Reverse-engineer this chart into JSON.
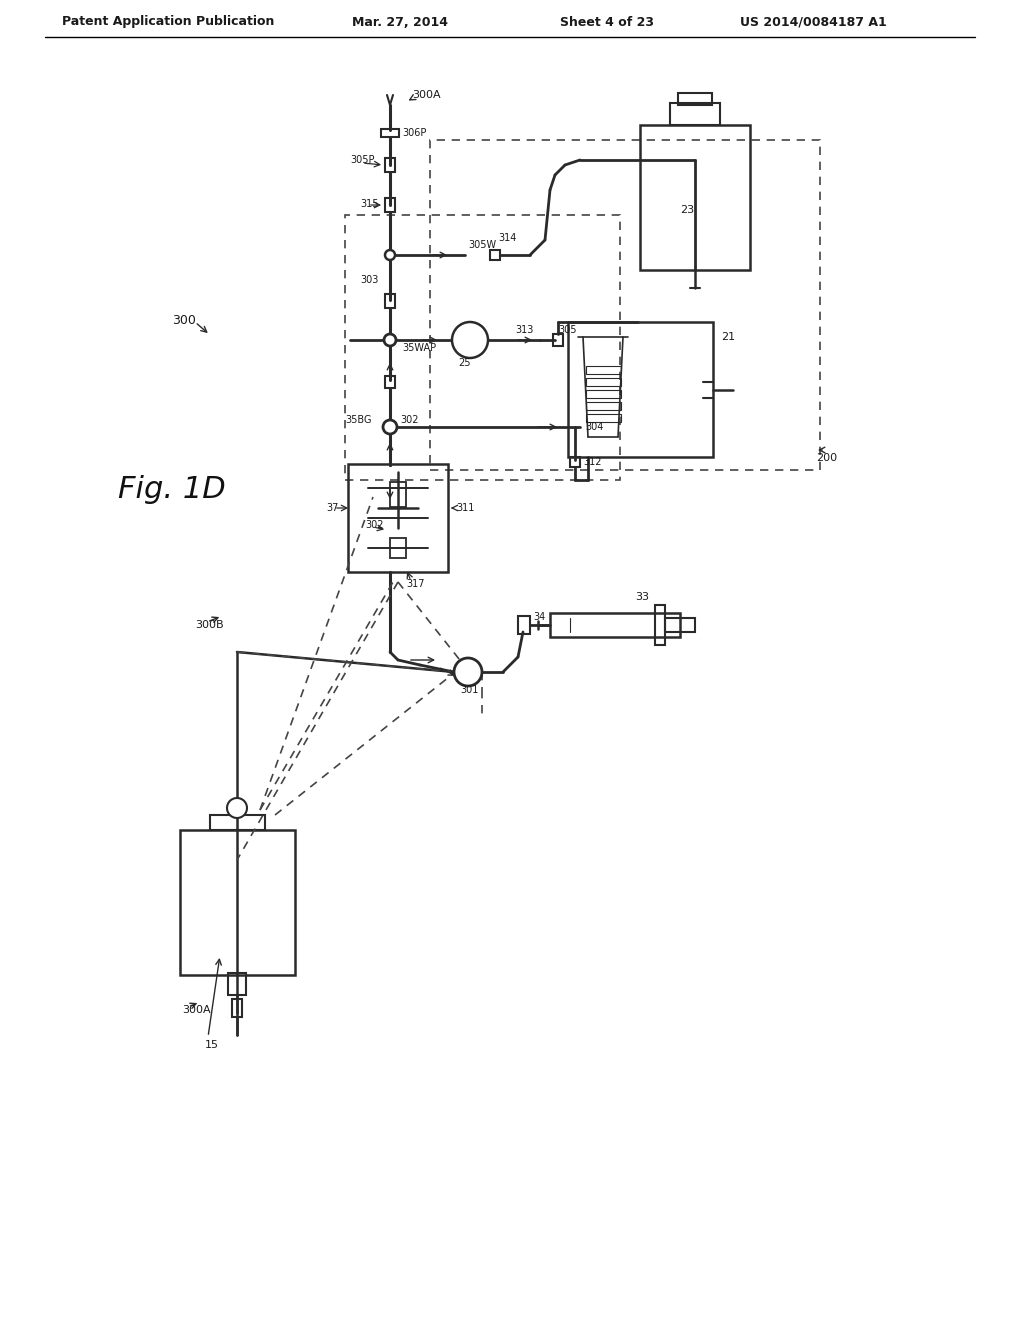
{
  "title": "Patent Application Publication",
  "date": "Mar. 27, 2014",
  "sheet": "Sheet 4 of 23",
  "patent_num": "US 2014/0084187 A1",
  "fig_label": "Fig. 1D",
  "bg": "#ffffff",
  "lc": "#2a2a2a",
  "dc": "#444444",
  "tc": "#1a1a1a"
}
